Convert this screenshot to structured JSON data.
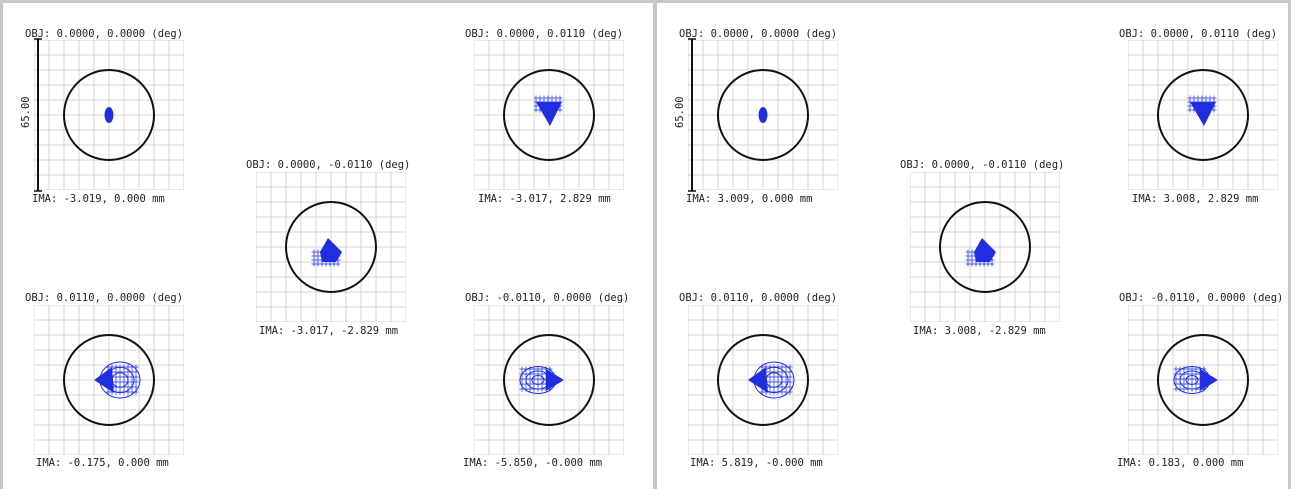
{
  "panels": [
    {
      "id": "left",
      "scale_label": "65.00",
      "spots": [
        {
          "pos": "top-left",
          "obj": "OBJ: 0.0000, 0.0000 (deg)",
          "ima": "IMA: -3.019, 0.000 mm",
          "pattern": "dot"
        },
        {
          "pos": "top-right",
          "obj": "OBJ: 0.0000, 0.0110 (deg)",
          "ima": "IMA: -3.017, 2.829 mm",
          "pattern": "tri-down"
        },
        {
          "pos": "center",
          "obj": "OBJ: 0.0000, -0.0110 (deg)",
          "ima": "IMA: -3.017, -2.829 mm",
          "pattern": "tri-up"
        },
        {
          "pos": "bottom-left",
          "obj": "OBJ: 0.0110, 0.0000 (deg)",
          "ima": "IMA: -0.175, 0.000 mm",
          "pattern": "left-tip"
        },
        {
          "pos": "bottom-right",
          "obj": "OBJ: -0.0110, 0.0000 (deg)",
          "ima": "IMA: -5.850, -0.000 mm",
          "pattern": "right-tip"
        }
      ]
    },
    {
      "id": "right",
      "scale_label": "65.00",
      "spots": [
        {
          "pos": "top-left",
          "obj": "OBJ: 0.0000, 0.0000 (deg)",
          "ima": "IMA: 3.009, 0.000 mm",
          "pattern": "dot"
        },
        {
          "pos": "top-right",
          "obj": "OBJ: 0.0000, 0.0110 (deg)",
          "ima": "IMA: 3.008, 2.829 mm",
          "pattern": "tri-down"
        },
        {
          "pos": "center",
          "obj": "OBJ: 0.0000, -0.0110 (deg)",
          "ima": "IMA: 3.008, -2.829 mm",
          "pattern": "tri-up"
        },
        {
          "pos": "bottom-left",
          "obj": "OBJ: 0.0110, 0.0000 (deg)",
          "ima": "IMA: 5.819, -0.000 mm",
          "pattern": "left-tip"
        },
        {
          "pos": "bottom-right",
          "obj": "OBJ: -0.0110, 0.0000 (deg)",
          "ima": "IMA: 0.183, 0.000 mm",
          "pattern": "right-tip"
        }
      ]
    }
  ],
  "colors": {
    "spot": "#1f2fe0",
    "grid": "#d4d4d4",
    "circle": "#111111",
    "border": "#c8c8c8"
  }
}
